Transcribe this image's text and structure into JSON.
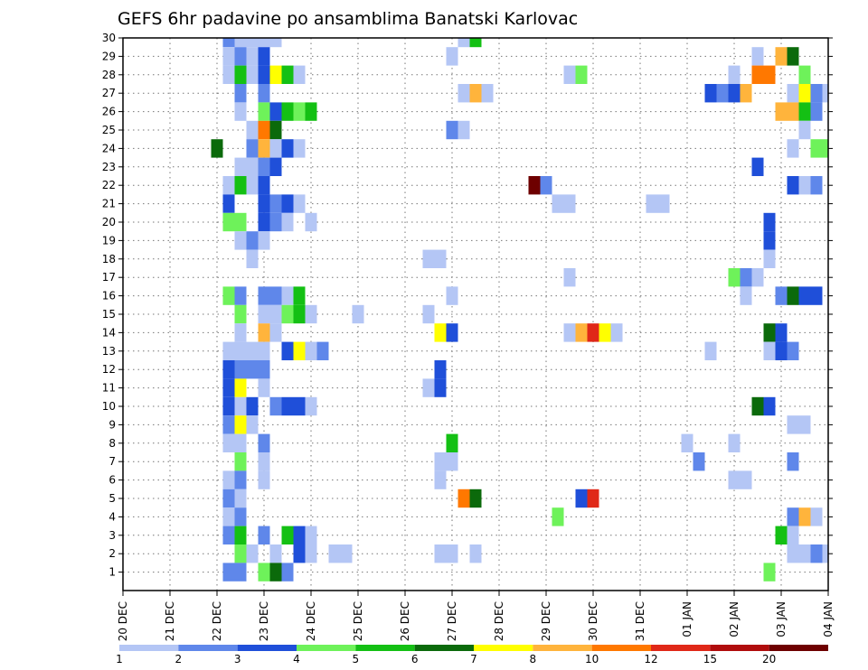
{
  "chart_data": {
    "type": "heatmap",
    "title": "GEFS 6hr padavine po ansamblima Banatski Karlovac",
    "xlabel": "",
    "ylabel": "",
    "x_ticks": [
      "20 DEC",
      "21 DEC",
      "22 DEC",
      "23 DEC",
      "24 DEC",
      "25 DEC",
      "26 DEC",
      "27 DEC",
      "28 DEC",
      "29 DEC",
      "30 DEC",
      "31 DEC",
      "01 JAN",
      "02 JAN",
      "03 JAN",
      "04 JAN"
    ],
    "xlim": [
      "20 DEC",
      "04 JAN"
    ],
    "time_step_hours": 6,
    "y_ticks": [
      1,
      2,
      3,
      4,
      5,
      6,
      7,
      8,
      9,
      10,
      11,
      12,
      13,
      14,
      15,
      16,
      17,
      18,
      19,
      20,
      21,
      22,
      23,
      24,
      25,
      26,
      27,
      28,
      29,
      30
    ],
    "ylim": [
      0,
      30
    ],
    "grid": "dotted",
    "legend_placement": "bottom",
    "colorbar": {
      "labels": [
        "1",
        "2",
        "3",
        "4",
        "5",
        "6",
        "7",
        "8",
        "10",
        "12",
        "15",
        "20"
      ],
      "colors": [
        "#b4c6f5",
        "#5f87ea",
        "#1f4fd9",
        "#6ef25a",
        "#14c014",
        "#0b6a0b",
        "#ffff00",
        "#ffb43c",
        "#ff7800",
        "#e02818",
        "#b00c0c",
        "#6e0000"
      ]
    },
    "cells": [
      {
        "member": 30,
        "day": 2.25,
        "bin": 2
      },
      {
        "member": 30,
        "day": 2.5,
        "bin": 1
      },
      {
        "member": 30,
        "day": 2.75,
        "bin": 1
      },
      {
        "member": 30,
        "day": 3.0,
        "bin": 1
      },
      {
        "member": 30,
        "day": 3.25,
        "bin": 1
      },
      {
        "member": 30,
        "day": 7.25,
        "bin": 1
      },
      {
        "member": 30,
        "day": 7.5,
        "bin": 5
      },
      {
        "member": 29,
        "day": 2.25,
        "bin": 1
      },
      {
        "member": 29,
        "day": 2.5,
        "bin": 2
      },
      {
        "member": 29,
        "day": 2.75,
        "bin": 1
      },
      {
        "member": 29,
        "day": 3.0,
        "bin": 3
      },
      {
        "member": 29,
        "day": 7.0,
        "bin": 1
      },
      {
        "member": 29,
        "day": 13.5,
        "bin": 1
      },
      {
        "member": 29,
        "day": 14.0,
        "bin": 8
      },
      {
        "member": 29,
        "day": 14.25,
        "bin": 6
      },
      {
        "member": 28,
        "day": 2.25,
        "bin": 1
      },
      {
        "member": 28,
        "day": 2.5,
        "bin": 5
      },
      {
        "member": 28,
        "day": 2.75,
        "bin": 1
      },
      {
        "member": 28,
        "day": 3.0,
        "bin": 3
      },
      {
        "member": 28,
        "day": 3.25,
        "bin": 7
      },
      {
        "member": 28,
        "day": 3.5,
        "bin": 5
      },
      {
        "member": 28,
        "day": 3.75,
        "bin": 1
      },
      {
        "member": 28,
        "day": 9.5,
        "bin": 1
      },
      {
        "member": 28,
        "day": 9.75,
        "bin": 4
      },
      {
        "member": 28,
        "day": 13.0,
        "bin": 1
      },
      {
        "member": 28,
        "day": 13.5,
        "bin": 9
      },
      {
        "member": 28,
        "day": 13.75,
        "bin": 9
      },
      {
        "member": 28,
        "day": 14.5,
        "bin": 4
      },
      {
        "member": 27,
        "day": 2.5,
        "bin": 2
      },
      {
        "member": 27,
        "day": 3.0,
        "bin": 2
      },
      {
        "member": 27,
        "day": 7.25,
        "bin": 1
      },
      {
        "member": 27,
        "day": 7.5,
        "bin": 8
      },
      {
        "member": 27,
        "day": 7.75,
        "bin": 1
      },
      {
        "member": 27,
        "day": 12.5,
        "bin": 3
      },
      {
        "member": 27,
        "day": 12.75,
        "bin": 2
      },
      {
        "member": 27,
        "day": 13.0,
        "bin": 3
      },
      {
        "member": 27,
        "day": 13.25,
        "bin": 8
      },
      {
        "member": 27,
        "day": 14.25,
        "bin": 1
      },
      {
        "member": 27,
        "day": 14.5,
        "bin": 7
      },
      {
        "member": 27,
        "day": 14.75,
        "bin": 2
      },
      {
        "member": 27,
        "day": 15.0,
        "bin": 1
      },
      {
        "member": 26,
        "day": 2.5,
        "bin": 1
      },
      {
        "member": 26,
        "day": 3.0,
        "bin": 4
      },
      {
        "member": 26,
        "day": 3.25,
        "bin": 3
      },
      {
        "member": 26,
        "day": 3.5,
        "bin": 5
      },
      {
        "member": 26,
        "day": 3.75,
        "bin": 4
      },
      {
        "member": 26,
        "day": 4.0,
        "bin": 5
      },
      {
        "member": 26,
        "day": 14.0,
        "bin": 8
      },
      {
        "member": 26,
        "day": 14.25,
        "bin": 8
      },
      {
        "member": 26,
        "day": 14.5,
        "bin": 5
      },
      {
        "member": 26,
        "day": 14.75,
        "bin": 2
      },
      {
        "member": 25,
        "day": 2.75,
        "bin": 1
      },
      {
        "member": 25,
        "day": 3.0,
        "bin": 9
      },
      {
        "member": 25,
        "day": 3.25,
        "bin": 6
      },
      {
        "member": 25,
        "day": 7.0,
        "bin": 2
      },
      {
        "member": 25,
        "day": 7.25,
        "bin": 1
      },
      {
        "member": 25,
        "day": 14.5,
        "bin": 1
      },
      {
        "member": 25,
        "day": 15.25,
        "bin": 2
      },
      {
        "member": 25,
        "day": 15.75,
        "bin": 1
      },
      {
        "member": 24,
        "day": 2.0,
        "bin": 6
      },
      {
        "member": 24,
        "day": 2.75,
        "bin": 2
      },
      {
        "member": 24,
        "day": 3.0,
        "bin": 8
      },
      {
        "member": 24,
        "day": 3.25,
        "bin": 1
      },
      {
        "member": 24,
        "day": 3.5,
        "bin": 3
      },
      {
        "member": 24,
        "day": 3.75,
        "bin": 1
      },
      {
        "member": 24,
        "day": 14.25,
        "bin": 1
      },
      {
        "member": 24,
        "day": 14.75,
        "bin": 4
      },
      {
        "member": 24,
        "day": 15.0,
        "bin": 4
      },
      {
        "member": 23,
        "day": 2.5,
        "bin": 1
      },
      {
        "member": 23,
        "day": 2.75,
        "bin": 1
      },
      {
        "member": 23,
        "day": 3.0,
        "bin": 2
      },
      {
        "member": 23,
        "day": 3.25,
        "bin": 3
      },
      {
        "member": 23,
        "day": 13.5,
        "bin": 3
      },
      {
        "member": 22,
        "day": 2.25,
        "bin": 1
      },
      {
        "member": 22,
        "day": 2.5,
        "bin": 5
      },
      {
        "member": 22,
        "day": 2.75,
        "bin": 1
      },
      {
        "member": 22,
        "day": 3.0,
        "bin": 3
      },
      {
        "member": 22,
        "day": 8.75,
        "bin": 12
      },
      {
        "member": 22,
        "day": 9.0,
        "bin": 2
      },
      {
        "member": 22,
        "day": 14.25,
        "bin": 3
      },
      {
        "member": 22,
        "day": 14.5,
        "bin": 1
      },
      {
        "member": 22,
        "day": 14.75,
        "bin": 2
      },
      {
        "member": 21,
        "day": 2.25,
        "bin": 3
      },
      {
        "member": 21,
        "day": 3.0,
        "bin": 3
      },
      {
        "member": 21,
        "day": 3.25,
        "bin": 2
      },
      {
        "member": 21,
        "day": 3.5,
        "bin": 3
      },
      {
        "member": 21,
        "day": 3.75,
        "bin": 1
      },
      {
        "member": 21,
        "day": 9.25,
        "bin": 1
      },
      {
        "member": 21,
        "day": 9.5,
        "bin": 1
      },
      {
        "member": 21,
        "day": 11.25,
        "bin": 1
      },
      {
        "member": 21,
        "day": 11.5,
        "bin": 1
      },
      {
        "member": 20,
        "day": 2.25,
        "bin": 4
      },
      {
        "member": 20,
        "day": 2.5,
        "bin": 4
      },
      {
        "member": 20,
        "day": 3.0,
        "bin": 3
      },
      {
        "member": 20,
        "day": 3.25,
        "bin": 2
      },
      {
        "member": 20,
        "day": 3.5,
        "bin": 1
      },
      {
        "member": 20,
        "day": 4.0,
        "bin": 1
      },
      {
        "member": 20,
        "day": 13.75,
        "bin": 3
      },
      {
        "member": 19,
        "day": 2.5,
        "bin": 1
      },
      {
        "member": 19,
        "day": 2.75,
        "bin": 2
      },
      {
        "member": 19,
        "day": 3.0,
        "bin": 1
      },
      {
        "member": 19,
        "day": 13.75,
        "bin": 3
      },
      {
        "member": 18,
        "day": 2.75,
        "bin": 1
      },
      {
        "member": 18,
        "day": 6.5,
        "bin": 1
      },
      {
        "member": 18,
        "day": 6.75,
        "bin": 1
      },
      {
        "member": 18,
        "day": 13.75,
        "bin": 1
      },
      {
        "member": 17,
        "day": 9.5,
        "bin": 1
      },
      {
        "member": 17,
        "day": 13.0,
        "bin": 4
      },
      {
        "member": 17,
        "day": 13.25,
        "bin": 2
      },
      {
        "member": 17,
        "day": 13.5,
        "bin": 1
      },
      {
        "member": 17,
        "day": 15.5,
        "bin": 10
      },
      {
        "member": 17,
        "day": 15.75,
        "bin": 3
      },
      {
        "member": 16,
        "day": 2.25,
        "bin": 4
      },
      {
        "member": 16,
        "day": 2.5,
        "bin": 2
      },
      {
        "member": 16,
        "day": 3.0,
        "bin": 2
      },
      {
        "member": 16,
        "day": 3.25,
        "bin": 2
      },
      {
        "member": 16,
        "day": 3.5,
        "bin": 1
      },
      {
        "member": 16,
        "day": 3.75,
        "bin": 5
      },
      {
        "member": 16,
        "day": 7.0,
        "bin": 1
      },
      {
        "member": 16,
        "day": 13.25,
        "bin": 1
      },
      {
        "member": 16,
        "day": 14.0,
        "bin": 2
      },
      {
        "member": 16,
        "day": 14.25,
        "bin": 6
      },
      {
        "member": 16,
        "day": 14.5,
        "bin": 3
      },
      {
        "member": 16,
        "day": 14.75,
        "bin": 3
      },
      {
        "member": 15,
        "day": 2.5,
        "bin": 4
      },
      {
        "member": 15,
        "day": 3.0,
        "bin": 1
      },
      {
        "member": 15,
        "day": 3.25,
        "bin": 1
      },
      {
        "member": 15,
        "day": 3.5,
        "bin": 4
      },
      {
        "member": 15,
        "day": 3.75,
        "bin": 5
      },
      {
        "member": 15,
        "day": 4.0,
        "bin": 1
      },
      {
        "member": 15,
        "day": 5.0,
        "bin": 1
      },
      {
        "member": 15,
        "day": 6.5,
        "bin": 1
      },
      {
        "member": 14,
        "day": 2.5,
        "bin": 1
      },
      {
        "member": 14,
        "day": 3.0,
        "bin": 8
      },
      {
        "member": 14,
        "day": 3.25,
        "bin": 1
      },
      {
        "member": 14,
        "day": 6.75,
        "bin": 7
      },
      {
        "member": 14,
        "day": 7.0,
        "bin": 3
      },
      {
        "member": 14,
        "day": 9.5,
        "bin": 1
      },
      {
        "member": 14,
        "day": 9.75,
        "bin": 8
      },
      {
        "member": 14,
        "day": 10.0,
        "bin": 10
      },
      {
        "member": 14,
        "day": 10.25,
        "bin": 7
      },
      {
        "member": 14,
        "day": 10.5,
        "bin": 1
      },
      {
        "member": 14,
        "day": 13.75,
        "bin": 6
      },
      {
        "member": 14,
        "day": 14.0,
        "bin": 3
      },
      {
        "member": 13,
        "day": 2.25,
        "bin": 1
      },
      {
        "member": 13,
        "day": 2.5,
        "bin": 1
      },
      {
        "member": 13,
        "day": 2.75,
        "bin": 1
      },
      {
        "member": 13,
        "day": 3.0,
        "bin": 1
      },
      {
        "member": 13,
        "day": 3.5,
        "bin": 3
      },
      {
        "member": 13,
        "day": 3.75,
        "bin": 7
      },
      {
        "member": 13,
        "day": 4.0,
        "bin": 1
      },
      {
        "member": 13,
        "day": 4.25,
        "bin": 2
      },
      {
        "member": 13,
        "day": 12.5,
        "bin": 1
      },
      {
        "member": 13,
        "day": 13.75,
        "bin": 1
      },
      {
        "member": 13,
        "day": 14.0,
        "bin": 3
      },
      {
        "member": 13,
        "day": 14.25,
        "bin": 2
      },
      {
        "member": 12,
        "day": 2.25,
        "bin": 3
      },
      {
        "member": 12,
        "day": 2.5,
        "bin": 2
      },
      {
        "member": 12,
        "day": 2.75,
        "bin": 2
      },
      {
        "member": 12,
        "day": 3.0,
        "bin": 2
      },
      {
        "member": 12,
        "day": 6.75,
        "bin": 3
      },
      {
        "member": 12,
        "day": 15.75,
        "bin": 2
      },
      {
        "member": 11,
        "day": 2.25,
        "bin": 3
      },
      {
        "member": 11,
        "day": 2.5,
        "bin": 7
      },
      {
        "member": 11,
        "day": 3.0,
        "bin": 1
      },
      {
        "member": 11,
        "day": 6.5,
        "bin": 1
      },
      {
        "member": 11,
        "day": 6.75,
        "bin": 3
      },
      {
        "member": 10,
        "day": 2.25,
        "bin": 3
      },
      {
        "member": 10,
        "day": 2.5,
        "bin": 1
      },
      {
        "member": 10,
        "day": 2.75,
        "bin": 3
      },
      {
        "member": 10,
        "day": 3.25,
        "bin": 2
      },
      {
        "member": 10,
        "day": 3.5,
        "bin": 3
      },
      {
        "member": 10,
        "day": 3.75,
        "bin": 3
      },
      {
        "member": 10,
        "day": 4.0,
        "bin": 1
      },
      {
        "member": 10,
        "day": 13.5,
        "bin": 6
      },
      {
        "member": 10,
        "day": 13.75,
        "bin": 3
      },
      {
        "member": 9,
        "day": 2.25,
        "bin": 2
      },
      {
        "member": 9,
        "day": 2.5,
        "bin": 7
      },
      {
        "member": 9,
        "day": 2.75,
        "bin": 1
      },
      {
        "member": 9,
        "day": 14.25,
        "bin": 1
      },
      {
        "member": 9,
        "day": 14.5,
        "bin": 1
      },
      {
        "member": 8,
        "day": 2.25,
        "bin": 1
      },
      {
        "member": 8,
        "day": 2.5,
        "bin": 1
      },
      {
        "member": 8,
        "day": 3.0,
        "bin": 2
      },
      {
        "member": 8,
        "day": 7.0,
        "bin": 5
      },
      {
        "member": 8,
        "day": 12.0,
        "bin": 1
      },
      {
        "member": 8,
        "day": 13.0,
        "bin": 1
      },
      {
        "member": 7,
        "day": 2.5,
        "bin": 4
      },
      {
        "member": 7,
        "day": 3.0,
        "bin": 1
      },
      {
        "member": 7,
        "day": 6.75,
        "bin": 1
      },
      {
        "member": 7,
        "day": 7.0,
        "bin": 1
      },
      {
        "member": 7,
        "day": 12.25,
        "bin": 2
      },
      {
        "member": 7,
        "day": 14.25,
        "bin": 2
      },
      {
        "member": 6,
        "day": 2.25,
        "bin": 1
      },
      {
        "member": 6,
        "day": 2.5,
        "bin": 2
      },
      {
        "member": 6,
        "day": 3.0,
        "bin": 1
      },
      {
        "member": 6,
        "day": 6.75,
        "bin": 1
      },
      {
        "member": 6,
        "day": 13.0,
        "bin": 1
      },
      {
        "member": 6,
        "day": 13.25,
        "bin": 1
      },
      {
        "member": 5,
        "day": 2.25,
        "bin": 2
      },
      {
        "member": 5,
        "day": 2.5,
        "bin": 1
      },
      {
        "member": 5,
        "day": 7.25,
        "bin": 9
      },
      {
        "member": 5,
        "day": 7.5,
        "bin": 6
      },
      {
        "member": 5,
        "day": 9.75,
        "bin": 3
      },
      {
        "member": 5,
        "day": 10.0,
        "bin": 10
      },
      {
        "member": 5,
        "day": 15.25,
        "bin": 2
      },
      {
        "member": 4,
        "day": 2.25,
        "bin": 1
      },
      {
        "member": 4,
        "day": 2.5,
        "bin": 2
      },
      {
        "member": 4,
        "day": 9.25,
        "bin": 4
      },
      {
        "member": 4,
        "day": 14.25,
        "bin": 2
      },
      {
        "member": 4,
        "day": 14.5,
        "bin": 8
      },
      {
        "member": 4,
        "day": 14.75,
        "bin": 1
      },
      {
        "member": 3,
        "day": 2.25,
        "bin": 2
      },
      {
        "member": 3,
        "day": 2.5,
        "bin": 5
      },
      {
        "member": 3,
        "day": 3.0,
        "bin": 2
      },
      {
        "member": 3,
        "day": 3.5,
        "bin": 5
      },
      {
        "member": 3,
        "day": 3.75,
        "bin": 3
      },
      {
        "member": 3,
        "day": 4.0,
        "bin": 1
      },
      {
        "member": 3,
        "day": 14.0,
        "bin": 5
      },
      {
        "member": 3,
        "day": 14.25,
        "bin": 1
      },
      {
        "member": 3,
        "day": 15.25,
        "bin": 3
      },
      {
        "member": 2,
        "day": 2.5,
        "bin": 4
      },
      {
        "member": 2,
        "day": 2.75,
        "bin": 1
      },
      {
        "member": 2,
        "day": 3.25,
        "bin": 1
      },
      {
        "member": 2,
        "day": 3.75,
        "bin": 3
      },
      {
        "member": 2,
        "day": 4.0,
        "bin": 1
      },
      {
        "member": 2,
        "day": 4.5,
        "bin": 1
      },
      {
        "member": 2,
        "day": 4.75,
        "bin": 1
      },
      {
        "member": 2,
        "day": 6.75,
        "bin": 1
      },
      {
        "member": 2,
        "day": 7.0,
        "bin": 1
      },
      {
        "member": 2,
        "day": 7.5,
        "bin": 1
      },
      {
        "member": 2,
        "day": 14.25,
        "bin": 1
      },
      {
        "member": 2,
        "day": 14.5,
        "bin": 1
      },
      {
        "member": 2,
        "day": 14.75,
        "bin": 2
      },
      {
        "member": 2,
        "day": 15.0,
        "bin": 1
      },
      {
        "member": 1,
        "day": 2.25,
        "bin": 2
      },
      {
        "member": 1,
        "day": 2.5,
        "bin": 2
      },
      {
        "member": 1,
        "day": 3.0,
        "bin": 4
      },
      {
        "member": 1,
        "day": 3.25,
        "bin": 6
      },
      {
        "member": 1,
        "day": 3.5,
        "bin": 2
      },
      {
        "member": 1,
        "day": 13.75,
        "bin": 4
      },
      {
        "member": 1,
        "day": 15.75,
        "bin": 6
      }
    ]
  }
}
